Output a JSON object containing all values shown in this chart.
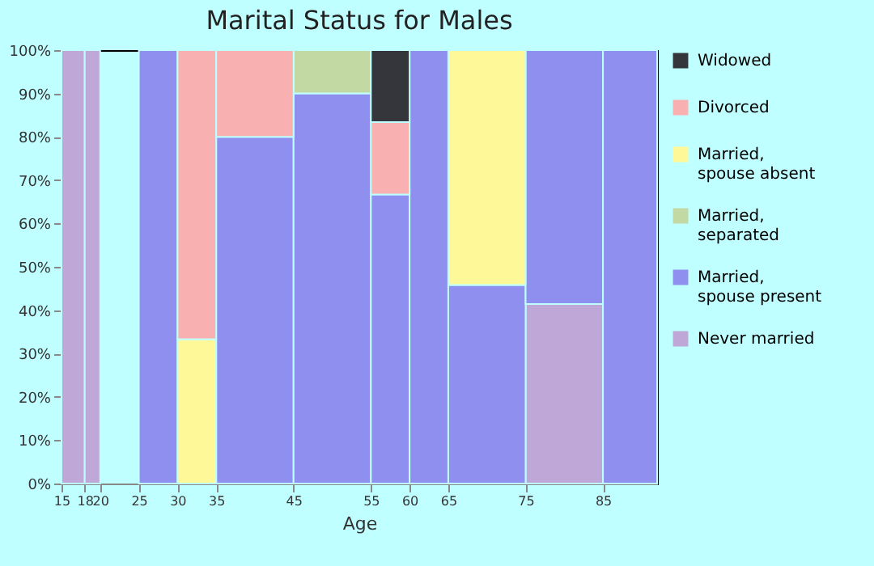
{
  "chart_data": {
    "type": "bar",
    "stacked": true,
    "title": "Marital Status for Males",
    "xlabel": "Age",
    "x": [
      16.5,
      19,
      22.5,
      27.5,
      32.5,
      40,
      50,
      57.5,
      62.5,
      70,
      80,
      88.5
    ],
    "xlim": [
      15,
      92
    ],
    "xticks": [
      15,
      18,
      20,
      25,
      30,
      35,
      45,
      55,
      60,
      65,
      75,
      85
    ],
    "ylim": [
      0,
      100
    ],
    "yticks": [
      {
        "value": 0,
        "label": "0%"
      },
      {
        "value": 10,
        "label": "10%"
      },
      {
        "value": 20,
        "label": "20%"
      },
      {
        "value": 30,
        "label": "30%"
      },
      {
        "value": 40,
        "label": "40%"
      },
      {
        "value": 50,
        "label": "50%"
      },
      {
        "value": 60,
        "label": "60%"
      },
      {
        "value": 70,
        "label": "70%"
      },
      {
        "value": 80,
        "label": "80%"
      },
      {
        "value": 90,
        "label": "90%"
      },
      {
        "value": 100,
        "label": "100%"
      }
    ],
    "grid": false,
    "legend": "right",
    "series": [
      {
        "name": "Never married",
        "color": "#bfa8d8",
        "values": [
          100,
          100,
          null,
          null,
          null,
          null,
          null,
          null,
          null,
          null,
          41.4,
          null
        ]
      },
      {
        "name": "Married, spouse present",
        "color": "#8f8ff0",
        "values": [
          null,
          null,
          null,
          100,
          null,
          80,
          90,
          66.7,
          100,
          45.8,
          58.6,
          100
        ]
      },
      {
        "name": "Married, separated",
        "color": "#c2d9a3",
        "values": [
          null,
          null,
          null,
          null,
          null,
          null,
          10,
          null,
          null,
          null,
          null,
          null
        ]
      },
      {
        "name": "Married, spouse absent",
        "color": "#fff899",
        "values": [
          null,
          null,
          null,
          null,
          33.3,
          null,
          null,
          null,
          null,
          54.2,
          null,
          null
        ]
      },
      {
        "name": "Divorced",
        "color": "#f8b0b0",
        "values": [
          null,
          null,
          null,
          null,
          66.7,
          20,
          null,
          16.7,
          null,
          null,
          null,
          null
        ]
      },
      {
        "name": "Widowed",
        "color": "#35363b",
        "values": [
          null,
          null,
          null,
          null,
          null,
          null,
          null,
          16.6,
          null,
          null,
          null,
          null
        ]
      }
    ]
  }
}
